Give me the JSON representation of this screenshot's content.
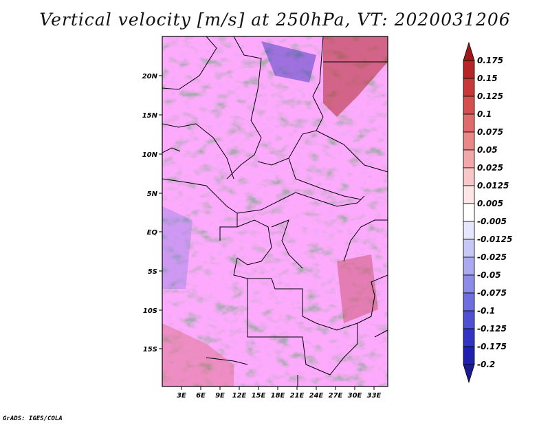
{
  "title": "Vertical velocity [m/s] at 250hPa, VT: 2020031206",
  "credit": "GrADS: IGES/COLA",
  "latitude_labels": [
    "20N",
    "15N",
    "10N",
    "5N",
    "EQ",
    "5S",
    "10S",
    "15S"
  ],
  "longitude_labels": [
    "3E",
    "6E",
    "9E",
    "12E",
    "15E",
    "18E",
    "21E",
    "24E",
    "27E",
    "30E",
    "33E"
  ],
  "colorbar": {
    "labels": [
      "0.175",
      "0.15",
      "0.125",
      "0.1",
      "0.075",
      "0.05",
      "0.025",
      "0.0125",
      "0.005",
      "-0.005",
      "-0.0125",
      "-0.025",
      "-0.05",
      "-0.075",
      "-0.1",
      "-0.125",
      "-0.175",
      "-0.2"
    ],
    "colors": [
      "#a01818",
      "#b72626",
      "#c83838",
      "#d64f4f",
      "#e16a6a",
      "#ea8888",
      "#f2a8a8",
      "#f8c8c8",
      "#fde6e6",
      "#ffffff",
      "#e6e6fc",
      "#c8c8f6",
      "#aaaaf0",
      "#8c8ce8",
      "#6e6ee0",
      "#5050d4",
      "#3434c4",
      "#2020b0",
      "#1a1a96"
    ]
  },
  "field_colors": {
    "positive": "#d9534f",
    "negative": "#5a5ae0",
    "neutral": "#f4eef4"
  }
}
